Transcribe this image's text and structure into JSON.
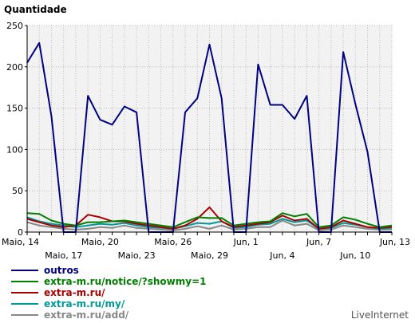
{
  "chart_data": {
    "type": "line",
    "ylabel": "Quantidade",
    "ylim": [
      0,
      250
    ],
    "yticks": [
      0,
      50,
      100,
      150,
      200,
      250
    ],
    "x_days": 31,
    "x_start_label": "Maio, 14",
    "x_tick_labels": [
      {
        "label": "Maio, 14",
        "day": 0,
        "row": 0
      },
      {
        "label": "Maio, 17",
        "day": 3,
        "row": 1
      },
      {
        "label": "Maio, 20",
        "day": 6,
        "row": 0
      },
      {
        "label": "Maio, 23",
        "day": 9,
        "row": 1
      },
      {
        "label": "Maio, 26",
        "day": 12,
        "row": 0
      },
      {
        "label": "Maio, 29",
        "day": 15,
        "row": 1
      },
      {
        "label": "Jun, 1",
        "day": 18,
        "row": 0
      },
      {
        "label": "Jun, 4",
        "day": 21,
        "row": 1
      },
      {
        "label": "Jun, 7",
        "day": 24,
        "row": 0
      },
      {
        "label": "Jun, 10",
        "day": 27,
        "row": 1
      },
      {
        "label": "Jun, 13",
        "day": 30,
        "row": 0
      }
    ],
    "grid": true,
    "legend_position": "bottom-left",
    "series": [
      {
        "name": "outros",
        "color": "#000080",
        "values": [
          205,
          229,
          140,
          0,
          0,
          165,
          136,
          130,
          152,
          145,
          0,
          0,
          0,
          145,
          162,
          227,
          162,
          0,
          0,
          203,
          154,
          154,
          137,
          165,
          0,
          0,
          218,
          155,
          97,
          0,
          0
        ]
      },
      {
        "name": "extra-m.ru/notice/?showmy=1",
        "color": "#008000",
        "values": [
          23,
          22,
          14,
          10,
          8,
          12,
          12,
          13,
          14,
          12,
          10,
          8,
          6,
          12,
          18,
          17,
          17,
          8,
          10,
          12,
          13,
          23,
          19,
          22,
          6,
          8,
          18,
          15,
          10,
          6,
          8
        ]
      },
      {
        "name": "extra-m.ru/",
        "color": "#aa0000",
        "values": [
          16,
          12,
          8,
          6,
          8,
          21,
          18,
          13,
          13,
          10,
          8,
          6,
          4,
          8,
          16,
          30,
          13,
          6,
          8,
          10,
          12,
          20,
          14,
          16,
          4,
          6,
          14,
          10,
          6,
          5,
          6
        ]
      },
      {
        "name": "extra-m.ru/my/",
        "color": "#009999",
        "values": [
          18,
          13,
          10,
          8,
          6,
          8,
          10,
          9,
          11,
          8,
          6,
          5,
          4,
          7,
          11,
          10,
          13,
          5,
          6,
          9,
          10,
          16,
          12,
          14,
          4,
          5,
          11,
          9,
          6,
          4,
          5
        ]
      },
      {
        "name": "extra-m.ru/add/",
        "color": "#888888",
        "values": [
          12,
          8,
          6,
          4,
          3,
          4,
          6,
          5,
          8,
          5,
          4,
          3,
          2,
          4,
          7,
          4,
          8,
          3,
          4,
          6,
          6,
          14,
          8,
          10,
          2,
          3,
          8,
          6,
          4,
          3,
          3
        ]
      }
    ]
  },
  "brand": "LiveInternet"
}
